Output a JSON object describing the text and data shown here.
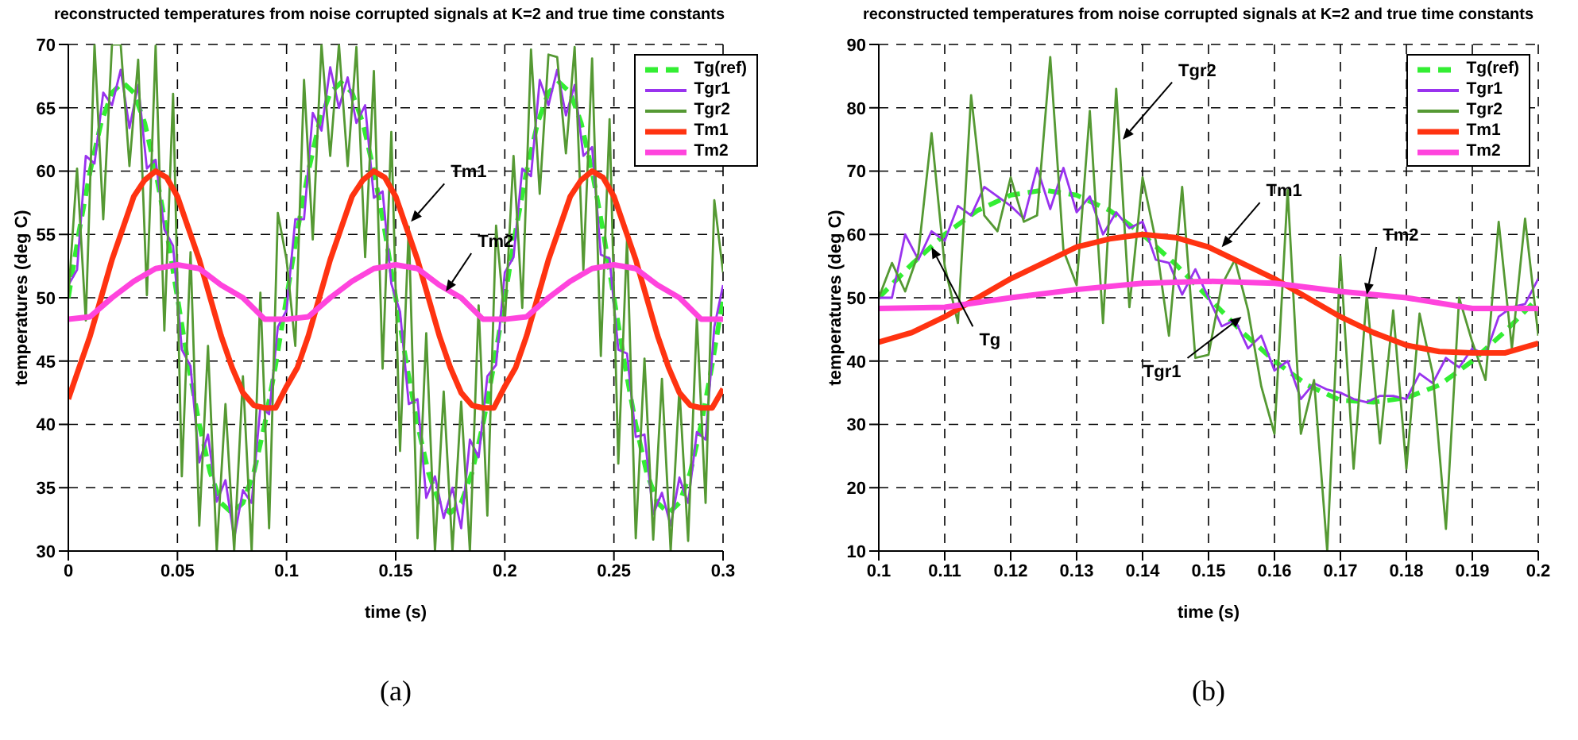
{
  "chart_data": [
    {
      "type": "line",
      "title": "reconstructed temperatures from noise corrupted signals at K=2 and true time constants",
      "xlabel": "time (s)",
      "ylabel": "temperatures (deg C)",
      "xlim": [
        0,
        0.3
      ],
      "ylim": [
        30,
        70
      ],
      "xticks": [
        0,
        0.05,
        0.1,
        0.15,
        0.2,
        0.25,
        0.3
      ],
      "yticks": [
        30,
        35,
        40,
        45,
        50,
        55,
        60,
        65,
        70
      ],
      "grid": true,
      "legend": "top right",
      "marker": "none",
      "annotations": [
        {
          "text": "Tm1",
          "x": 0.157,
          "y": 56
        },
        {
          "text": "Tm2",
          "x": 0.173,
          "y": 50.5
        },
        "(a)"
      ],
      "series": [
        {
          "name": "Tg(ref)",
          "color": "#33ee33",
          "line_style": "dashed",
          "x": [
            0,
            0.005,
            0.01,
            0.015,
            0.02,
            0.025,
            0.03,
            0.035,
            0.04,
            0.045,
            0.05,
            0.055,
            0.06,
            0.065,
            0.07,
            0.075,
            0.08,
            0.085,
            0.09,
            0.095,
            0.1,
            0.105,
            0.11,
            0.115,
            0.12,
            0.125,
            0.13,
            0.135,
            0.14,
            0.145,
            0.15,
            0.155,
            0.16,
            0.165,
            0.17,
            0.175,
            0.18,
            0.185,
            0.19,
            0.195,
            0.2,
            0.205,
            0.21,
            0.215,
            0.22,
            0.225,
            0.23,
            0.235,
            0.24,
            0.245,
            0.25,
            0.255,
            0.26,
            0.265,
            0.27,
            0.275,
            0.28,
            0.285,
            0.29,
            0.295,
            0.3
          ],
          "values": [
            50,
            55.3,
            60,
            63.8,
            66.2,
            67,
            66.2,
            63.8,
            60,
            55.3,
            50,
            44.7,
            40,
            36.2,
            33.8,
            33,
            33.8,
            36.2,
            40,
            44.7,
            50,
            55.3,
            60,
            63.8,
            66.2,
            67,
            66.2,
            63.8,
            60,
            55.3,
            50,
            44.7,
            40,
            36.2,
            33.8,
            33,
            33.8,
            36.2,
            40,
            44.7,
            50,
            55.3,
            60,
            63.8,
            66.2,
            67,
            66.2,
            63.8,
            60,
            55.3,
            50,
            44.7,
            40,
            36.2,
            33.8,
            33,
            33.8,
            36.2,
            40,
            44.7,
            50
          ]
        },
        {
          "name": "Tgr1",
          "color": "#9933ee",
          "line_style": "solid",
          "x": [
            0,
            0.004,
            0.008,
            0.012,
            0.016,
            0.02,
            0.024,
            0.028,
            0.032,
            0.036,
            0.04,
            0.044,
            0.048,
            0.052,
            0.056,
            0.06,
            0.064,
            0.068,
            0.072,
            0.076,
            0.08,
            0.084,
            0.088,
            0.092,
            0.096,
            0.1,
            0.104,
            0.108,
            0.112,
            0.116,
            0.12,
            0.124,
            0.128,
            0.132,
            0.136,
            0.14,
            0.144,
            0.148,
            0.152,
            0.156,
            0.16,
            0.164,
            0.168,
            0.172,
            0.176,
            0.18,
            0.184,
            0.188,
            0.192,
            0.196,
            0.2,
            0.204,
            0.208,
            0.212,
            0.216,
            0.22,
            0.224,
            0.228,
            0.232,
            0.236,
            0.24,
            0.244,
            0.248,
            0.252,
            0.256,
            0.26,
            0.264,
            0.268,
            0.272,
            0.276,
            0.28,
            0.284,
            0.288,
            0.292,
            0.296,
            0.3
          ],
          "values": [
            51,
            52.2,
            61.2,
            60.6,
            66.2,
            65.2,
            68,
            63.4,
            66.8,
            60.2,
            60.9,
            55.4,
            54.1,
            45.9,
            44.6,
            37,
            39.2,
            33.9,
            35.6,
            31,
            34.8,
            33.8,
            41.4,
            40.8,
            47.7,
            49,
            56.2,
            56.2,
            64.6,
            63.2,
            68.2,
            65,
            67.4,
            63.8,
            65.2,
            57.9,
            58.4,
            51.1,
            48.9,
            41.6,
            42,
            34.2,
            35.9,
            32.6,
            35,
            31.8,
            38.8,
            37.4,
            43.8,
            44.7,
            52,
            53.2,
            60.2,
            59.6,
            67.2,
            65.2,
            68,
            64.4,
            66.8,
            61.2,
            61.9,
            53.4,
            53.1,
            45.9,
            45.6,
            39,
            39.2,
            32.9,
            34.6,
            32,
            35.8,
            33.8,
            39.4,
            38.8,
            47.7,
            51
          ]
        },
        {
          "name": "Tgr2",
          "color": "#559933",
          "line_style": "solid",
          "x": [
            0,
            0.004,
            0.008,
            0.012,
            0.016,
            0.02,
            0.024,
            0.028,
            0.032,
            0.036,
            0.04,
            0.044,
            0.048,
            0.052,
            0.056,
            0.06,
            0.064,
            0.068,
            0.072,
            0.076,
            0.08,
            0.084,
            0.088,
            0.092,
            0.096,
            0.1,
            0.104,
            0.108,
            0.112,
            0.116,
            0.12,
            0.124,
            0.128,
            0.132,
            0.136,
            0.14,
            0.144,
            0.148,
            0.152,
            0.156,
            0.16,
            0.164,
            0.168,
            0.172,
            0.176,
            0.18,
            0.184,
            0.188,
            0.192,
            0.196,
            0.2,
            0.204,
            0.208,
            0.212,
            0.216,
            0.22,
            0.224,
            0.228,
            0.232,
            0.236,
            0.24,
            0.244,
            0.248,
            0.252,
            0.256,
            0.26,
            0.264,
            0.268,
            0.272,
            0.276,
            0.28,
            0.284,
            0.288,
            0.292,
            0.296,
            0.3
          ],
          "values": [
            50,
            60.2,
            48.2,
            70,
            56.2,
            70,
            70,
            60.4,
            68.8,
            50.2,
            69.9,
            47.4,
            66.1,
            35.9,
            53.6,
            32,
            46.2,
            30,
            41.6,
            30,
            43.8,
            30,
            50.4,
            31.8,
            56.7,
            53,
            46.2,
            67.2,
            54.6,
            70,
            61.2,
            70,
            60.4,
            69.8,
            53.2,
            67.9,
            44.4,
            63.1,
            37.9,
            55.6,
            31,
            47.2,
            30,
            42.6,
            30,
            41.8,
            30,
            49.4,
            32.8,
            55.7,
            48,
            61.2,
            49.2,
            69.6,
            58.2,
            69.2,
            69,
            61.4,
            69.8,
            52.2,
            68.9,
            45.4,
            64.1,
            36.9,
            54.6,
            31,
            45.2,
            30.9,
            43.6,
            30,
            42.8,
            30.8,
            48.4,
            33.8,
            57.7,
            52
          ]
        },
        {
          "name": "Tm1",
          "color": "#ff3311",
          "line_style": "solid",
          "x": [
            0,
            0.005,
            0.01,
            0.015,
            0.02,
            0.025,
            0.03,
            0.035,
            0.04,
            0.045,
            0.05,
            0.055,
            0.06,
            0.065,
            0.07,
            0.075,
            0.08,
            0.085,
            0.09,
            0.095,
            0.1,
            0.105,
            0.11,
            0.115,
            0.12,
            0.125,
            0.13,
            0.135,
            0.14,
            0.145,
            0.15,
            0.155,
            0.16,
            0.165,
            0.17,
            0.175,
            0.18,
            0.185,
            0.19,
            0.195,
            0.2,
            0.205,
            0.21,
            0.215,
            0.22,
            0.225,
            0.23,
            0.235,
            0.24,
            0.245,
            0.25,
            0.255,
            0.26,
            0.265,
            0.27,
            0.275,
            0.28,
            0.285,
            0.29,
            0.295,
            0.3
          ],
          "values": [
            42,
            44.5,
            47,
            50,
            53,
            55.5,
            58,
            59.3,
            60,
            59.5,
            58,
            55.5,
            53,
            50,
            47,
            44.5,
            42.5,
            41.5,
            41.3,
            41.3,
            43,
            44.5,
            47,
            50,
            53,
            55.5,
            58,
            59.3,
            60,
            59.5,
            58,
            55.5,
            53,
            50,
            47,
            44.5,
            42.5,
            41.5,
            41.3,
            41.3,
            43,
            44.5,
            47,
            50,
            53,
            55.5,
            58,
            59.3,
            60,
            59.5,
            58,
            55.5,
            53,
            50,
            47,
            44.5,
            42.5,
            41.5,
            41.3,
            41.3,
            42.8
          ]
        },
        {
          "name": "Tm2",
          "color": "#ff44dd",
          "line_style": "solid",
          "x": [
            0,
            0.01,
            0.02,
            0.03,
            0.04,
            0.05,
            0.06,
            0.07,
            0.08,
            0.09,
            0.1,
            0.11,
            0.12,
            0.13,
            0.14,
            0.15,
            0.16,
            0.17,
            0.18,
            0.19,
            0.2,
            0.21,
            0.22,
            0.23,
            0.24,
            0.25,
            0.26,
            0.27,
            0.28,
            0.29,
            0.3
          ],
          "values": [
            48.3,
            48.5,
            50,
            51.3,
            52.3,
            52.6,
            52.3,
            51,
            50,
            48.3,
            48.3,
            48.5,
            50,
            51.3,
            52.3,
            52.6,
            52.3,
            51,
            50,
            48.3,
            48.3,
            48.5,
            50,
            51.3,
            52.3,
            52.6,
            52.3,
            51,
            50,
            48.3,
            48.3
          ]
        }
      ]
    },
    {
      "type": "line",
      "title": "reconstructed temperatures from noise corrupted signals at K=2 and true time constants",
      "xlabel": "time (s)",
      "ylabel": "temperatures (deg C)",
      "xlim": [
        0.1,
        0.2
      ],
      "ylim": [
        10,
        90
      ],
      "xticks": [
        0.1,
        0.11,
        0.12,
        0.13,
        0.14,
        0.15,
        0.16,
        0.17,
        0.18,
        0.19,
        0.2
      ],
      "yticks": [
        10,
        20,
        30,
        40,
        50,
        60,
        70,
        80,
        90
      ],
      "grid": true,
      "legend": "top right",
      "marker": "none",
      "annotations": [
        {
          "text": "Tgr2",
          "x": 0.137,
          "y": 75
        },
        {
          "text": "Tm1",
          "x": 0.152,
          "y": 58
        },
        {
          "text": "Tm2",
          "x": 0.174,
          "y": 50.5
        },
        {
          "text": "Tg",
          "x": 0.108,
          "y": 58
        },
        {
          "text": "Tgr1",
          "x": 0.155,
          "y": 47
        },
        "(b)"
      ],
      "series": [
        {
          "name": "Tg(ref)",
          "color": "#33ee33",
          "line_style": "dashed",
          "x": [
            0.1,
            0.105,
            0.11,
            0.115,
            0.12,
            0.125,
            0.13,
            0.135,
            0.14,
            0.145,
            0.15,
            0.155,
            0.16,
            0.165,
            0.17,
            0.175,
            0.18,
            0.185,
            0.19,
            0.195,
            0.2
          ],
          "values": [
            50,
            55.3,
            60,
            63.8,
            66.2,
            67,
            66.2,
            63.8,
            60,
            55.3,
            50,
            44.7,
            40,
            36.2,
            33.8,
            33.5,
            34.2,
            36.2,
            40,
            44.7,
            50
          ]
        },
        {
          "name": "Tgr1",
          "color": "#9933ee",
          "line_style": "solid",
          "x": [
            0.1,
            0.102,
            0.104,
            0.106,
            0.108,
            0.11,
            0.112,
            0.114,
            0.116,
            0.118,
            0.12,
            0.122,
            0.124,
            0.126,
            0.128,
            0.13,
            0.132,
            0.134,
            0.136,
            0.138,
            0.14,
            0.142,
            0.144,
            0.146,
            0.148,
            0.15,
            0.152,
            0.154,
            0.156,
            0.158,
            0.16,
            0.162,
            0.164,
            0.166,
            0.168,
            0.17,
            0.172,
            0.174,
            0.176,
            0.178,
            0.18,
            0.182,
            0.184,
            0.186,
            0.188,
            0.19,
            0.192,
            0.194,
            0.196,
            0.198,
            0.2
          ],
          "values": [
            50,
            50,
            60,
            56,
            60.5,
            59,
            64.5,
            63,
            67.5,
            66,
            64.5,
            62.5,
            70.5,
            64,
            70.5,
            63.5,
            66,
            60,
            63.5,
            61,
            62,
            56,
            55.5,
            50.5,
            54.5,
            50,
            45.5,
            46.5,
            42,
            44,
            38.5,
            40,
            34,
            36.5,
            35.5,
            35,
            34,
            33.5,
            34.5,
            34.5,
            34,
            38,
            36.5,
            40.5,
            39,
            42,
            41,
            47,
            48.5,
            49,
            53
          ]
        },
        {
          "name": "Tgr2",
          "color": "#559933",
          "line_style": "solid",
          "x": [
            0.1,
            0.102,
            0.104,
            0.106,
            0.108,
            0.11,
            0.112,
            0.114,
            0.116,
            0.118,
            0.12,
            0.122,
            0.124,
            0.126,
            0.128,
            0.13,
            0.132,
            0.134,
            0.136,
            0.138,
            0.14,
            0.142,
            0.144,
            0.146,
            0.148,
            0.15,
            0.152,
            0.154,
            0.156,
            0.158,
            0.16,
            0.162,
            0.164,
            0.166,
            0.168,
            0.17,
            0.172,
            0.174,
            0.176,
            0.178,
            0.18,
            0.182,
            0.184,
            0.186,
            0.188,
            0.19,
            0.192,
            0.194,
            0.196,
            0.198,
            0.2
          ],
          "values": [
            50,
            55.5,
            51,
            57,
            76,
            55,
            46,
            82,
            63,
            60.5,
            69,
            62,
            63,
            88,
            57.5,
            52,
            79.5,
            46,
            83,
            48.5,
            69,
            59,
            44,
            67.5,
            40.5,
            41,
            52,
            56,
            48,
            36,
            28.5,
            67,
            28.5,
            37,
            10,
            56.5,
            23,
            50.5,
            27,
            48,
            23,
            47.5,
            38,
            13.5,
            50,
            43,
            37,
            62,
            42,
            62.5,
            44
          ]
        },
        {
          "name": "Tm1",
          "color": "#ff3311",
          "line_style": "solid",
          "x": [
            0.1,
            0.105,
            0.11,
            0.115,
            0.12,
            0.125,
            0.13,
            0.135,
            0.14,
            0.145,
            0.15,
            0.155,
            0.16,
            0.165,
            0.17,
            0.175,
            0.18,
            0.185,
            0.19,
            0.195,
            0.2
          ],
          "values": [
            43,
            44.5,
            47,
            50,
            53,
            55.5,
            58,
            59.3,
            60,
            59.5,
            58,
            55.5,
            53,
            50,
            47,
            44.5,
            42.5,
            41.5,
            41.3,
            41.3,
            42.8
          ]
        },
        {
          "name": "Tm2",
          "color": "#ff44dd",
          "line_style": "solid",
          "x": [
            0.1,
            0.11,
            0.12,
            0.13,
            0.14,
            0.15,
            0.16,
            0.17,
            0.18,
            0.19,
            0.2
          ],
          "values": [
            48.3,
            48.5,
            50,
            51.3,
            52.3,
            52.6,
            52.3,
            51,
            50,
            48.3,
            48.3
          ]
        }
      ]
    }
  ]
}
